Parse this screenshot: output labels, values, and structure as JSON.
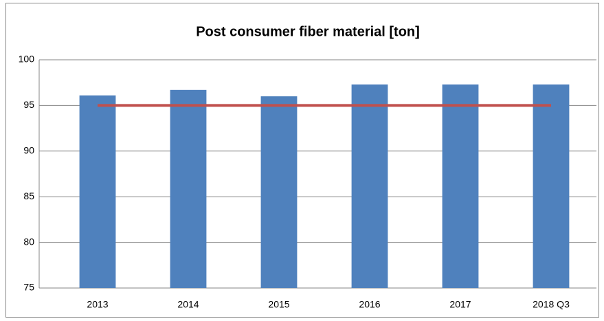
{
  "chart_data": {
    "type": "bar",
    "title": "Post consumer fiber material [ton]",
    "categories": [
      "2013",
      "2014",
      "2015",
      "2016",
      "2017",
      "2018 Q3"
    ],
    "series": [
      {
        "type": "bar",
        "color": "#4f81bd",
        "values": [
          96.1,
          96.7,
          96.0,
          97.3,
          97.3,
          97.3
        ]
      },
      {
        "type": "line",
        "color": "#c0504d",
        "values": [
          95,
          95,
          95,
          95,
          95,
          95
        ]
      }
    ],
    "ylim": [
      75,
      100
    ],
    "yticks": [
      75,
      80,
      85,
      90,
      95,
      100
    ],
    "grid": true
  }
}
